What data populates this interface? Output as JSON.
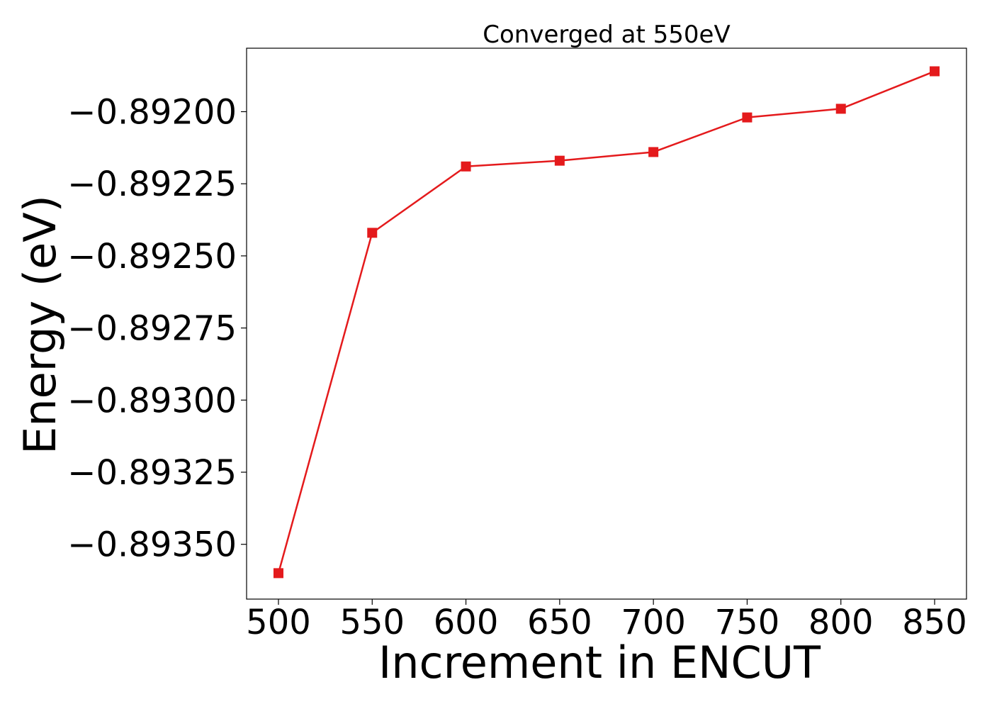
{
  "chart_data": {
    "type": "line",
    "title": "Converged at 550eV",
    "xlabel": "Increment in ENCUT",
    "ylabel": "Energy (eV)",
    "x": [
      500,
      550,
      600,
      650,
      700,
      750,
      800,
      850
    ],
    "series": [
      {
        "values": [
          -0.8936,
          -0.89242,
          -0.89219,
          -0.89217,
          -0.89214,
          -0.89202,
          -0.89199,
          -0.89186
        ],
        "color": "#e41a1c",
        "marker": "square"
      }
    ],
    "xticks": [
      500,
      550,
      600,
      650,
      700,
      750,
      800,
      850
    ],
    "xtick_labels": [
      "500",
      "550",
      "600",
      "650",
      "700",
      "750",
      "800",
      "850"
    ],
    "yticks": [
      -0.8935,
      -0.89325,
      -0.893,
      -0.89275,
      -0.8925,
      -0.89225,
      -0.892
    ],
    "ytick_labels": [
      "−0.89350",
      "−0.89325",
      "−0.89300",
      "−0.89275",
      "−0.89250",
      "−0.89225",
      "−0.89200"
    ],
    "xlim": [
      483,
      867
    ],
    "ylim": [
      -0.89369,
      -0.89178
    ],
    "grid": false,
    "legend": "none"
  }
}
